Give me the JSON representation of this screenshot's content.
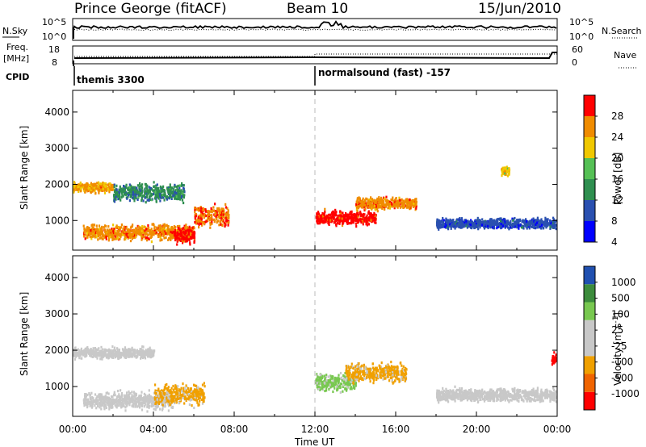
{
  "header": {
    "station": "Prince George (fitACF)",
    "beam": "Beam 10",
    "date": "15/Jun/2010"
  },
  "noise_panel": {
    "left_label": "N.Sky",
    "right_label": "N.Search",
    "left_ticks": [
      "10^5",
      "10^0"
    ],
    "right_ticks": [
      "10^5",
      "10^0"
    ]
  },
  "freq_panel": {
    "left_label_1": "Freq.",
    "left_label_2": "[MHz]",
    "left_ticks": [
      "18",
      "8"
    ],
    "right_label": "Nave",
    "right_ticks": [
      "60",
      "0"
    ]
  },
  "cpid": {
    "label": "CPID",
    "mode_1": "themis 3300",
    "mode_2": "normalsound (fast) -157"
  },
  "chart_data": [
    {
      "type": "heatmap",
      "title": "",
      "xlabel": "",
      "ylabel": "Slant Range [km]",
      "x_ticks": [
        "00:00",
        "04:00",
        "08:00",
        "12:00",
        "16:00",
        "20:00",
        "00:00"
      ],
      "y_ticks": [
        "1000",
        "2000",
        "3000",
        "4000"
      ],
      "xlim_hours": [
        0,
        24
      ],
      "ylim_km": [
        180,
        4600
      ],
      "colorbar_label": "Power [dB]",
      "colorbar_ticks": [
        "28",
        "24",
        "20",
        "16",
        "12",
        "8",
        "4"
      ],
      "colorbar_range": [
        0,
        30
      ],
      "colorbar_colors": [
        "#0000ff",
        "#2a50b0",
        "#2f8f50",
        "#55c055",
        "#f0c800",
        "#f08c00",
        "#ff0000"
      ],
      "features": [
        {
          "start_h": 0.0,
          "end_h": 2.0,
          "range_km": 1950,
          "spread_km": 120,
          "value": 22
        },
        {
          "start_h": 0.5,
          "end_h": 6.0,
          "range_km": 700,
          "spread_km": 180,
          "value": 24
        },
        {
          "start_h": 5.0,
          "end_h": 6.0,
          "range_km": 600,
          "spread_km": 180,
          "value": 28
        },
        {
          "start_h": 6.0,
          "end_h": 7.7,
          "range_km": 1150,
          "spread_km": 260,
          "value": 25
        },
        {
          "start_h": 2.0,
          "end_h": 5.5,
          "range_km": 1800,
          "spread_km": 200,
          "value": 10
        },
        {
          "start_h": 12.0,
          "end_h": 15.0,
          "range_km": 1100,
          "spread_km": 160,
          "value": 28
        },
        {
          "start_h": 14.0,
          "end_h": 17.0,
          "range_km": 1500,
          "spread_km": 140,
          "value": 24
        },
        {
          "start_h": 18.0,
          "end_h": 24.0,
          "range_km": 950,
          "spread_km": 120,
          "value": 6
        },
        {
          "start_h": 21.2,
          "end_h": 21.6,
          "range_km": 2400,
          "spread_km": 120,
          "value": 20
        }
      ]
    },
    {
      "type": "heatmap",
      "title": "",
      "xlabel": "Time UT",
      "ylabel": "Slant Range [km]",
      "x_ticks": [
        "00:00",
        "04:00",
        "08:00",
        "12:00",
        "16:00",
        "20:00",
        "00:00"
      ],
      "y_ticks": [
        "1000",
        "2000",
        "3000",
        "4000"
      ],
      "xlim_hours": [
        0,
        24
      ],
      "ylim_km": [
        180,
        4600
      ],
      "colorbar_label": "Velocity [m s-1]",
      "colorbar_ticks": [
        "1000",
        "500",
        "100",
        "25",
        "-25",
        "-100",
        "-500",
        "-1000"
      ],
      "colorbar_range": [
        -1000,
        1000
      ],
      "colorbar_colors": [
        "#ff0000",
        "#f06400",
        "#f0a000",
        "#c8c8c8",
        "#c8c8c8",
        "#78c850",
        "#3c8c3c",
        "#2050b0"
      ],
      "features": [
        {
          "start_h": 0.0,
          "end_h": 4.0,
          "range_km": 1950,
          "spread_km": 120,
          "value": 0
        },
        {
          "start_h": 0.5,
          "end_h": 5.0,
          "range_km": 650,
          "spread_km": 200,
          "value": 0
        },
        {
          "start_h": 4.0,
          "end_h": 6.5,
          "range_km": 800,
          "spread_km": 260,
          "value": -300
        },
        {
          "start_h": 12.0,
          "end_h": 14.0,
          "range_km": 1150,
          "spread_km": 200,
          "value": 300
        },
        {
          "start_h": 13.5,
          "end_h": 16.5,
          "range_km": 1400,
          "spread_km": 220,
          "value": -300
        },
        {
          "start_h": 18.0,
          "end_h": 24.0,
          "range_km": 800,
          "spread_km": 150,
          "value": 0
        },
        {
          "start_h": 23.7,
          "end_h": 24.0,
          "range_km": 1800,
          "spread_km": 150,
          "value": -1000
        }
      ]
    }
  ]
}
